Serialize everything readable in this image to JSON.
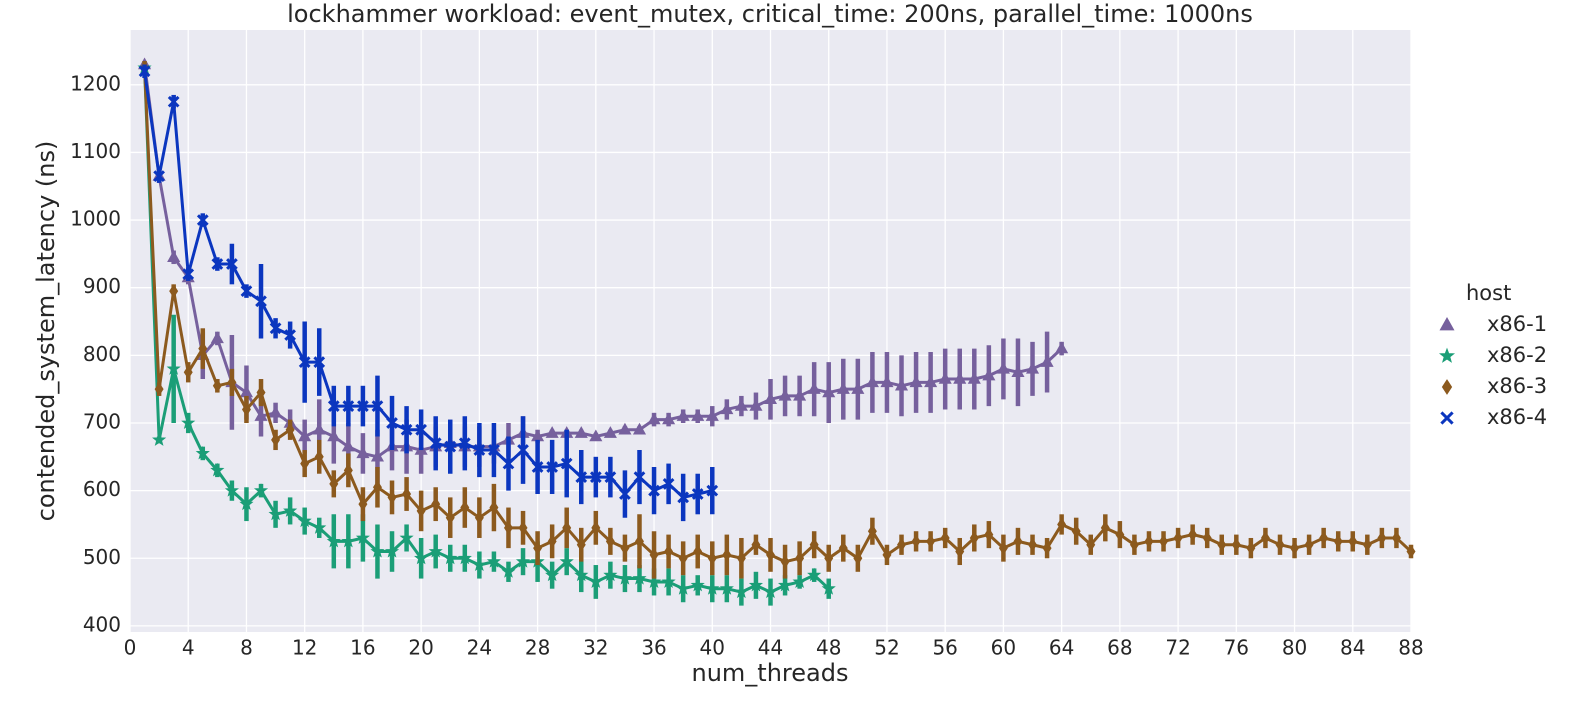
{
  "chart_data": {
    "type": "line",
    "title": "lockhammer workload: event_mutex, critical_time: 200ns, parallel_time: 1000ns",
    "x_label": "num_threads",
    "y_label": "contended_system_latency (ns)",
    "legend_title": "host",
    "legend_position": "right",
    "xlim": [
      0,
      88
    ],
    "ylim": [
      391,
      1281
    ],
    "xticks": [
      0,
      4,
      8,
      12,
      16,
      20,
      24,
      28,
      32,
      36,
      40,
      44,
      48,
      52,
      56,
      60,
      64,
      68,
      72,
      76,
      80,
      84,
      88
    ],
    "yticks": [
      400,
      500,
      600,
      700,
      800,
      900,
      1000,
      1100,
      1200
    ],
    "grid": true,
    "series": [
      {
        "name": "x86-1",
        "color": "#76609d",
        "marker": "triangle",
        "x": [
          1,
          2,
          3,
          4,
          5,
          6,
          7,
          8,
          9,
          10,
          11,
          12,
          13,
          14,
          15,
          16,
          17,
          18,
          19,
          20,
          21,
          22,
          23,
          24,
          25,
          26,
          27,
          28,
          29,
          30,
          31,
          32,
          33,
          34,
          35,
          36,
          37,
          38,
          39,
          40,
          41,
          42,
          43,
          44,
          45,
          46,
          47,
          48,
          49,
          50,
          51,
          52,
          53,
          54,
          55,
          56,
          57,
          58,
          59,
          60,
          61,
          62,
          63,
          64
        ],
        "values": [
          1230,
          1065,
          945,
          915,
          800,
          825,
          760,
          745,
          710,
          715,
          700,
          680,
          690,
          680,
          665,
          655,
          650,
          665,
          665,
          660,
          665,
          670,
          665,
          665,
          665,
          675,
          685,
          680,
          685,
          685,
          685,
          680,
          685,
          690,
          690,
          705,
          705,
          710,
          710,
          710,
          720,
          725,
          725,
          735,
          740,
          740,
          750,
          745,
          750,
          750,
          760,
          760,
          755,
          760,
          760,
          765,
          765,
          765,
          770,
          780,
          775,
          780,
          790,
          810
        ],
        "errors": [
          5,
          10,
          10,
          10,
          35,
          10,
          70,
          40,
          30,
          15,
          20,
          25,
          45,
          40,
          35,
          30,
          40,
          35,
          40,
          35,
          30,
          35,
          30,
          30,
          25,
          25,
          25,
          10,
          5,
          5,
          5,
          5,
          5,
          5,
          5,
          10,
          10,
          10,
          10,
          15,
          15,
          15,
          20,
          30,
          30,
          30,
          40,
          45,
          45,
          45,
          45,
          45,
          45,
          45,
          45,
          45,
          45,
          45,
          45,
          45,
          50,
          40,
          45,
          10
        ]
      },
      {
        "name": "x86-2",
        "color": "#1b9e77",
        "marker": "star",
        "x": [
          1,
          2,
          3,
          4,
          5,
          6,
          7,
          8,
          9,
          10,
          11,
          12,
          13,
          14,
          15,
          16,
          17,
          18,
          19,
          20,
          21,
          22,
          23,
          24,
          25,
          26,
          27,
          28,
          29,
          30,
          31,
          32,
          33,
          34,
          35,
          36,
          37,
          38,
          39,
          40,
          41,
          42,
          43,
          44,
          45,
          46,
          47,
          48
        ],
        "values": [
          1225,
          675,
          780,
          700,
          655,
          630,
          600,
          580,
          600,
          565,
          570,
          555,
          545,
          525,
          525,
          530,
          510,
          510,
          530,
          500,
          510,
          500,
          500,
          490,
          495,
          480,
          495,
          495,
          475,
          495,
          475,
          465,
          475,
          470,
          470,
          465,
          465,
          455,
          460,
          455,
          455,
          450,
          460,
          450,
          460,
          465,
          475,
          455
        ],
        "errors": [
          5,
          5,
          80,
          15,
          10,
          10,
          15,
          25,
          10,
          20,
          20,
          20,
          15,
          40,
          40,
          35,
          40,
          30,
          20,
          30,
          25,
          20,
          20,
          20,
          15,
          15,
          20,
          30,
          20,
          20,
          25,
          25,
          20,
          20,
          20,
          20,
          20,
          20,
          15,
          20,
          20,
          20,
          20,
          20,
          15,
          10,
          10,
          15
        ]
      },
      {
        "name": "x86-3",
        "color": "#8c5a1e",
        "marker": "diamond",
        "x": [
          1,
          2,
          3,
          4,
          5,
          6,
          7,
          8,
          9,
          10,
          11,
          12,
          13,
          14,
          15,
          16,
          17,
          18,
          19,
          20,
          21,
          22,
          23,
          24,
          25,
          26,
          27,
          28,
          29,
          30,
          31,
          32,
          33,
          34,
          35,
          36,
          37,
          38,
          39,
          40,
          41,
          42,
          43,
          44,
          45,
          46,
          47,
          48,
          49,
          50,
          51,
          52,
          53,
          54,
          55,
          56,
          57,
          58,
          59,
          60,
          61,
          62,
          63,
          64,
          65,
          66,
          67,
          68,
          69,
          70,
          71,
          72,
          73,
          74,
          75,
          76,
          77,
          78,
          79,
          80,
          81,
          82,
          83,
          84,
          85,
          86,
          87,
          88
        ],
        "values": [
          1225,
          750,
          895,
          775,
          810,
          755,
          760,
          720,
          745,
          675,
          690,
          640,
          650,
          610,
          630,
          580,
          605,
          590,
          595,
          570,
          580,
          560,
          575,
          560,
          575,
          545,
          545,
          515,
          525,
          545,
          520,
          545,
          525,
          515,
          525,
          505,
          510,
          500,
          510,
          500,
          505,
          500,
          520,
          505,
          495,
          500,
          520,
          500,
          515,
          500,
          540,
          505,
          520,
          525,
          525,
          530,
          510,
          530,
          535,
          515,
          525,
          520,
          515,
          550,
          540,
          520,
          545,
          535,
          520,
          525,
          525,
          530,
          535,
          530,
          520,
          520,
          515,
          530,
          520,
          515,
          520,
          530,
          525,
          525,
          520,
          530,
          530,
          510
        ],
        "errors": [
          10,
          10,
          10,
          15,
          30,
          10,
          20,
          20,
          20,
          15,
          15,
          20,
          25,
          20,
          25,
          25,
          30,
          25,
          25,
          30,
          25,
          30,
          30,
          30,
          35,
          30,
          25,
          25,
          25,
          30,
          25,
          25,
          20,
          20,
          40,
          35,
          25,
          25,
          25,
          25,
          30,
          30,
          15,
          25,
          25,
          25,
          20,
          20,
          20,
          20,
          20,
          15,
          15,
          15,
          15,
          15,
          20,
          20,
          20,
          20,
          20,
          15,
          15,
          15,
          20,
          15,
          20,
          20,
          15,
          15,
          15,
          15,
          15,
          15,
          15,
          15,
          15,
          15,
          15,
          15,
          15,
          15,
          15,
          15,
          15,
          15,
          15,
          10
        ]
      },
      {
        "name": "x86-4",
        "color": "#0b36bf",
        "marker": "x",
        "x": [
          1,
          2,
          3,
          4,
          5,
          6,
          7,
          8,
          9,
          10,
          11,
          12,
          13,
          14,
          15,
          16,
          17,
          18,
          19,
          20,
          21,
          22,
          23,
          24,
          25,
          26,
          27,
          28,
          29,
          30,
          31,
          32,
          33,
          34,
          35,
          36,
          37,
          38,
          39,
          40
        ],
        "values": [
          1220,
          1065,
          1175,
          920,
          1000,
          935,
          935,
          895,
          880,
          840,
          830,
          790,
          790,
          725,
          725,
          725,
          725,
          700,
          690,
          690,
          670,
          665,
          670,
          660,
          660,
          640,
          660,
          635,
          635,
          640,
          620,
          620,
          620,
          595,
          620,
          600,
          610,
          590,
          595,
          600
        ],
        "errors": [
          10,
          10,
          10,
          10,
          10,
          10,
          30,
          10,
          55,
          15,
          20,
          60,
          50,
          30,
          30,
          30,
          45,
          40,
          35,
          30,
          40,
          40,
          40,
          40,
          40,
          40,
          50,
          40,
          40,
          50,
          40,
          30,
          30,
          35,
          40,
          35,
          30,
          35,
          30,
          35
        ]
      }
    ]
  }
}
